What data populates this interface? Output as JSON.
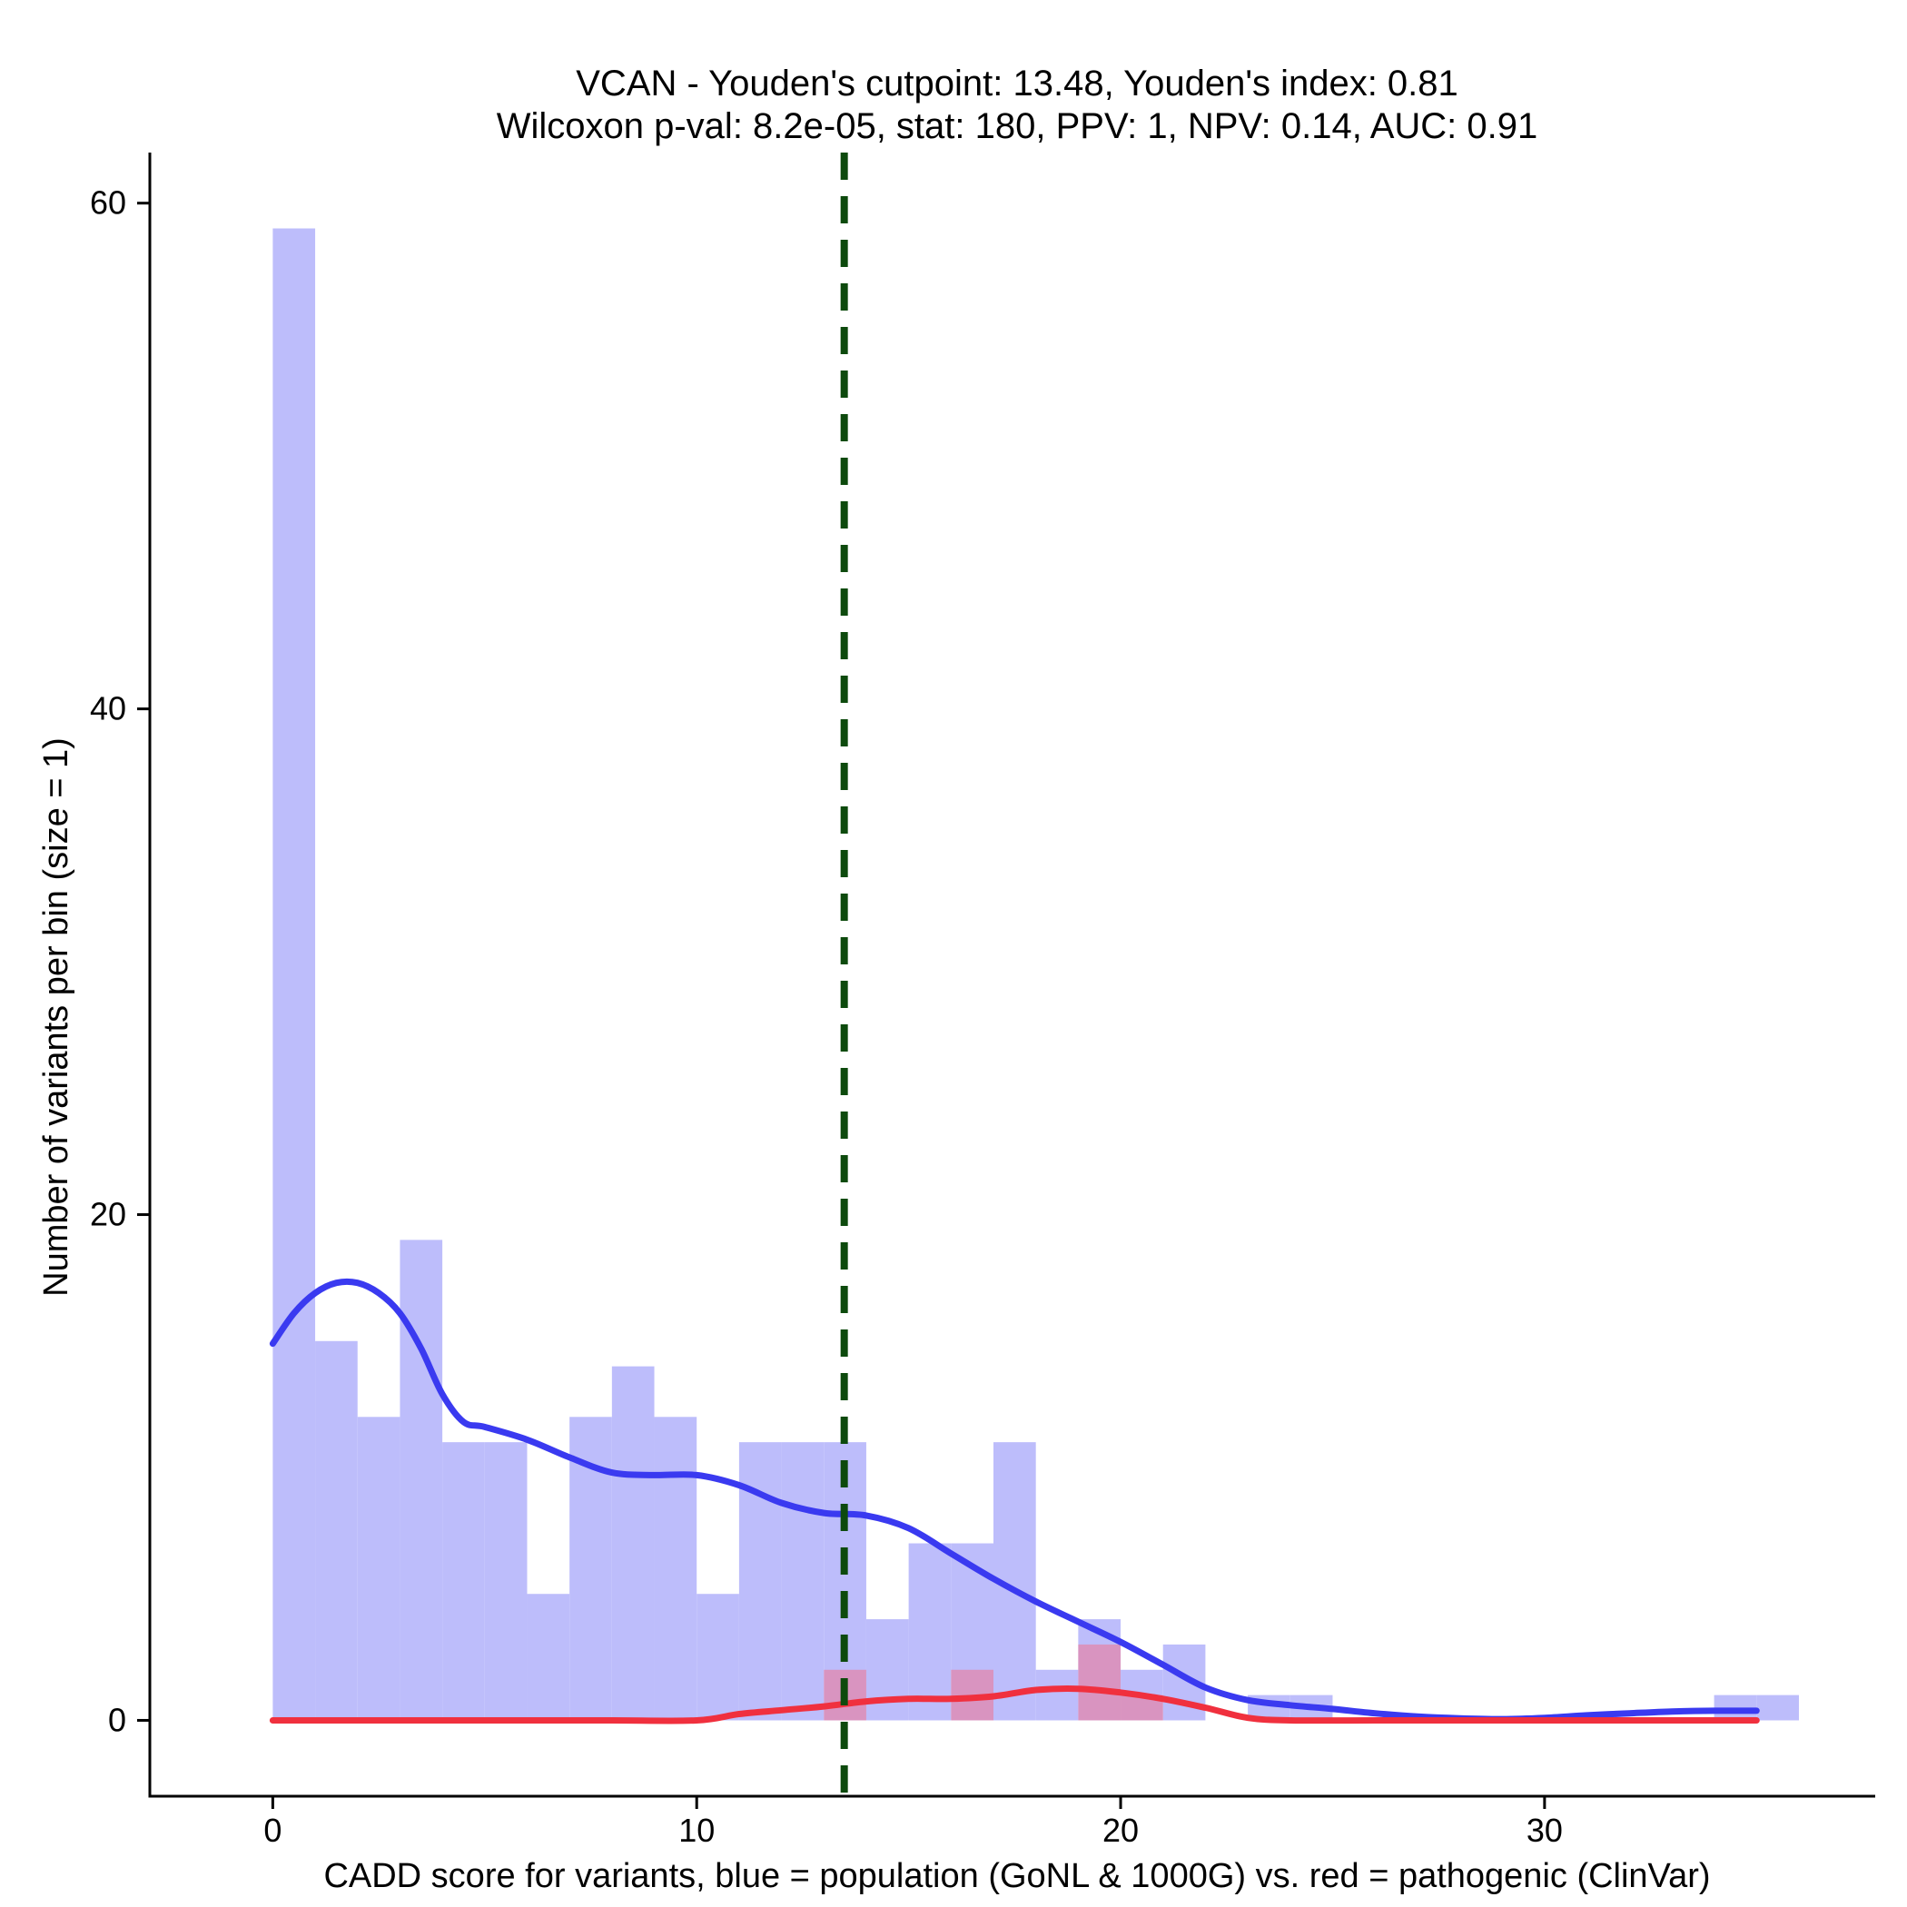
{
  "chart_data": {
    "type": "histogram",
    "title_line1": "VCAN - Youden's cutpoint: 13.48, Youden's index: 0.81",
    "title_line2": "Wilcoxon p-val: 8.2e-05, stat: 180, PPV: 1, NPV: 0.14, AUC: 0.91",
    "xlabel": "CADD score for variants, blue = population (GoNL & 1000G) vs. red = pathogenic (ClinVar)",
    "ylabel": "Number of variants per bin (size = 1)",
    "xlim": [
      -2.9,
      37.8
    ],
    "ylim": [
      -3,
      62
    ],
    "xticks": [
      {
        "value": 0,
        "label": "0"
      },
      {
        "value": 10,
        "label": "10"
      },
      {
        "value": 20,
        "label": "20"
      },
      {
        "value": 30,
        "label": "30"
      }
    ],
    "yticks": [
      {
        "value": 0,
        "label": "0"
      },
      {
        "value": 20,
        "label": "20"
      },
      {
        "value": 40,
        "label": "40"
      },
      {
        "value": 60,
        "label": "60"
      }
    ],
    "bin_size": 1,
    "cutpoint": 13.48,
    "colors": {
      "population_bar": "#bdbdfb",
      "pathogenic_bar": "#ff5a6e",
      "population_line": "#3a3af0",
      "pathogenic_line": "#f0303e",
      "cutpoint_line": "#0d4a0d",
      "axis": "#000000"
    },
    "series": [
      {
        "name": "population (GoNL & 1000G)",
        "bins": [
          {
            "x0": 0,
            "count": 59
          },
          {
            "x0": 1,
            "count": 15
          },
          {
            "x0": 2,
            "count": 12
          },
          {
            "x0": 3,
            "count": 19
          },
          {
            "x0": 4,
            "count": 11
          },
          {
            "x0": 5,
            "count": 11
          },
          {
            "x0": 6,
            "count": 5
          },
          {
            "x0": 7,
            "count": 12
          },
          {
            "x0": 8,
            "count": 14
          },
          {
            "x0": 9,
            "count": 12
          },
          {
            "x0": 10,
            "count": 5
          },
          {
            "x0": 11,
            "count": 11
          },
          {
            "x0": 12,
            "count": 11
          },
          {
            "x0": 13,
            "count": 11
          },
          {
            "x0": 14,
            "count": 4
          },
          {
            "x0": 15,
            "count": 7
          },
          {
            "x0": 16,
            "count": 7
          },
          {
            "x0": 17,
            "count": 11
          },
          {
            "x0": 18,
            "count": 2
          },
          {
            "x0": 19,
            "count": 4
          },
          {
            "x0": 20,
            "count": 2
          },
          {
            "x0": 21,
            "count": 3
          },
          {
            "x0": 23,
            "count": 1
          },
          {
            "x0": 24,
            "count": 1
          },
          {
            "x0": 34,
            "count": 1
          },
          {
            "x0": 35,
            "count": 1
          }
        ],
        "density_curve": [
          [
            0,
            14.9
          ],
          [
            0.5,
            16.1
          ],
          [
            1,
            16.9
          ],
          [
            1.5,
            17.3
          ],
          [
            2,
            17.3
          ],
          [
            2.5,
            16.9
          ],
          [
            3,
            16.1
          ],
          [
            3.5,
            14.7
          ],
          [
            4,
            12.9
          ],
          [
            4.5,
            11.8
          ],
          [
            5,
            11.6
          ],
          [
            6,
            11.1
          ],
          [
            7,
            10.4
          ],
          [
            8,
            9.8
          ],
          [
            9,
            9.7
          ],
          [
            10,
            9.7
          ],
          [
            11,
            9.3
          ],
          [
            12,
            8.6
          ],
          [
            13,
            8.2
          ],
          [
            14,
            8.1
          ],
          [
            15,
            7.6
          ],
          [
            16,
            6.6
          ],
          [
            17,
            5.6
          ],
          [
            18,
            4.7
          ],
          [
            19,
            3.9
          ],
          [
            20,
            3.1
          ],
          [
            21,
            2.2
          ],
          [
            22,
            1.3
          ],
          [
            23,
            0.8
          ],
          [
            24,
            0.6
          ],
          [
            25,
            0.45
          ],
          [
            26,
            0.28
          ],
          [
            27,
            0.15
          ],
          [
            28,
            0.08
          ],
          [
            29,
            0.05
          ],
          [
            30,
            0.1
          ],
          [
            31,
            0.2
          ],
          [
            32,
            0.28
          ],
          [
            33,
            0.35
          ],
          [
            34,
            0.38
          ],
          [
            35,
            0.38
          ]
        ]
      },
      {
        "name": "pathogenic (ClinVar)",
        "bins": [
          {
            "x0": 13,
            "count": 2
          },
          {
            "x0": 16,
            "count": 2
          },
          {
            "x0": 19,
            "count": 3
          },
          {
            "x0": 20,
            "count": 1
          }
        ],
        "density_curve": [
          [
            0,
            0
          ],
          [
            2,
            0
          ],
          [
            4,
            0
          ],
          [
            6,
            0
          ],
          [
            8,
            0
          ],
          [
            10,
            0
          ],
          [
            11,
            0.25
          ],
          [
            12,
            0.4
          ],
          [
            13,
            0.55
          ],
          [
            14,
            0.75
          ],
          [
            15,
            0.85
          ],
          [
            16,
            0.85
          ],
          [
            17,
            0.95
          ],
          [
            18,
            1.2
          ],
          [
            19,
            1.25
          ],
          [
            20,
            1.1
          ],
          [
            21,
            0.85
          ],
          [
            22,
            0.5
          ],
          [
            23,
            0.1
          ],
          [
            24,
            0
          ],
          [
            26,
            0
          ],
          [
            28,
            0
          ],
          [
            30,
            0
          ],
          [
            32,
            0
          ],
          [
            34,
            0
          ],
          [
            35,
            0
          ]
        ]
      }
    ]
  }
}
